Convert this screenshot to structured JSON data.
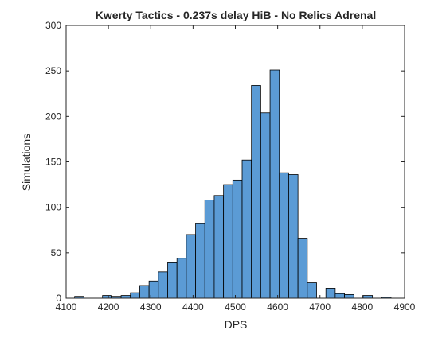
{
  "chart_data": {
    "type": "histogram",
    "title": "Kwerty Tactics - 0.237s delay HiB - No Relics Adrenal",
    "xlabel": "DPS",
    "ylabel": "Simulations",
    "xlim": [
      4100,
      4900
    ],
    "ylim": [
      0,
      300
    ],
    "xticks": [
      4100,
      4200,
      4300,
      4400,
      4500,
      4600,
      4700,
      4800,
      4900
    ],
    "yticks": [
      0,
      50,
      100,
      150,
      200,
      250,
      300
    ],
    "grid": false,
    "bin_width": 22,
    "bar_color": "#5b9bd5",
    "bar_edge_color": "#000000",
    "bins": [
      {
        "x": 4120,
        "count": 2
      },
      {
        "x": 4142,
        "count": 0
      },
      {
        "x": 4164,
        "count": 0
      },
      {
        "x": 4186,
        "count": 3
      },
      {
        "x": 4208,
        "count": 2
      },
      {
        "x": 4230,
        "count": 3
      },
      {
        "x": 4252,
        "count": 6
      },
      {
        "x": 4274,
        "count": 14
      },
      {
        "x": 4296,
        "count": 19
      },
      {
        "x": 4318,
        "count": 29
      },
      {
        "x": 4340,
        "count": 39
      },
      {
        "x": 4362,
        "count": 44
      },
      {
        "x": 4384,
        "count": 70
      },
      {
        "x": 4406,
        "count": 82
      },
      {
        "x": 4428,
        "count": 108
      },
      {
        "x": 4450,
        "count": 113
      },
      {
        "x": 4472,
        "count": 125
      },
      {
        "x": 4494,
        "count": 130
      },
      {
        "x": 4516,
        "count": 152
      },
      {
        "x": 4538,
        "count": 234
      },
      {
        "x": 4560,
        "count": 204
      },
      {
        "x": 4582,
        "count": 251
      },
      {
        "x": 4604,
        "count": 138
      },
      {
        "x": 4626,
        "count": 136
      },
      {
        "x": 4648,
        "count": 66
      },
      {
        "x": 4670,
        "count": 17
      },
      {
        "x": 4692,
        "count": 0
      },
      {
        "x": 4714,
        "count": 11
      },
      {
        "x": 4736,
        "count": 5
      },
      {
        "x": 4758,
        "count": 4
      },
      {
        "x": 4780,
        "count": 0
      },
      {
        "x": 4802,
        "count": 3
      },
      {
        "x": 4824,
        "count": 0
      },
      {
        "x": 4846,
        "count": 1
      }
    ]
  }
}
